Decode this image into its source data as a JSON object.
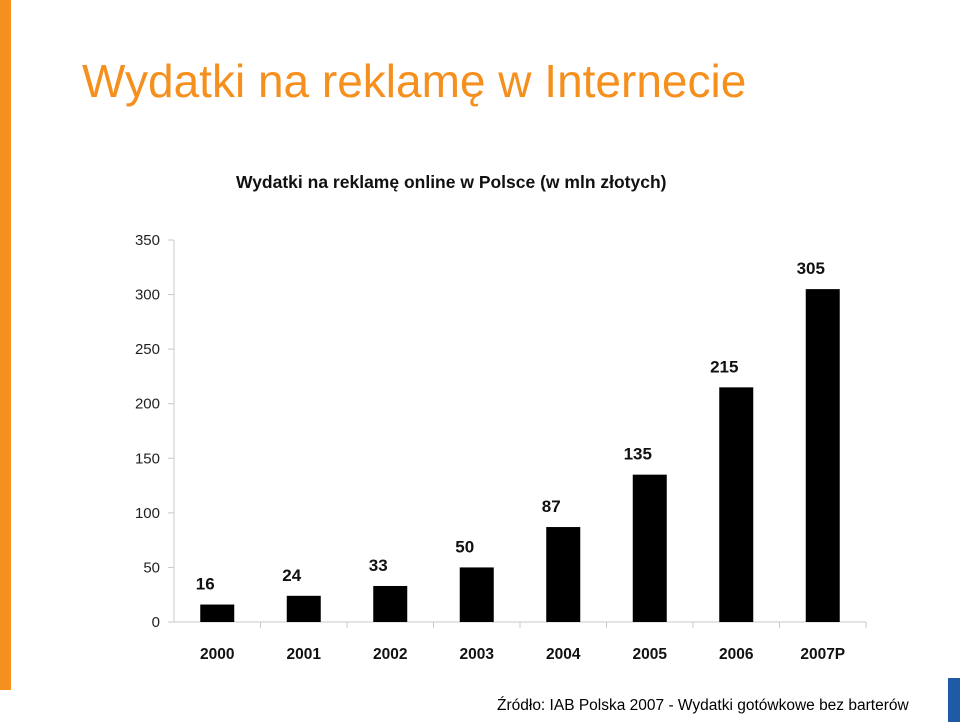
{
  "slide": {
    "title": "Wydatki na reklamę w Internecie",
    "source": "Źródło: IAB Polska 2007 - Wydatki gotówkowe bez barterów",
    "accent_color": "#f5901e",
    "corner_color": "#1f5aa6"
  },
  "chart_data": {
    "type": "bar",
    "title": "Wydatki na reklamę online w Polsce (w mln złotych)",
    "xlabel": "",
    "ylabel": "",
    "categories": [
      "2000",
      "2001",
      "2002",
      "2003",
      "2004",
      "2005",
      "2006",
      "2007P"
    ],
    "values": [
      16,
      24,
      33,
      50,
      87,
      135,
      215,
      305
    ],
    "data_labels": [
      "16",
      "24",
      "33",
      "50",
      "87",
      "135",
      "215",
      "305"
    ],
    "ylim": [
      0,
      350
    ],
    "yticks": [
      0,
      50,
      100,
      150,
      200,
      250,
      300,
      350
    ],
    "bar_color": "#000000",
    "grid": false,
    "legend": "none"
  }
}
